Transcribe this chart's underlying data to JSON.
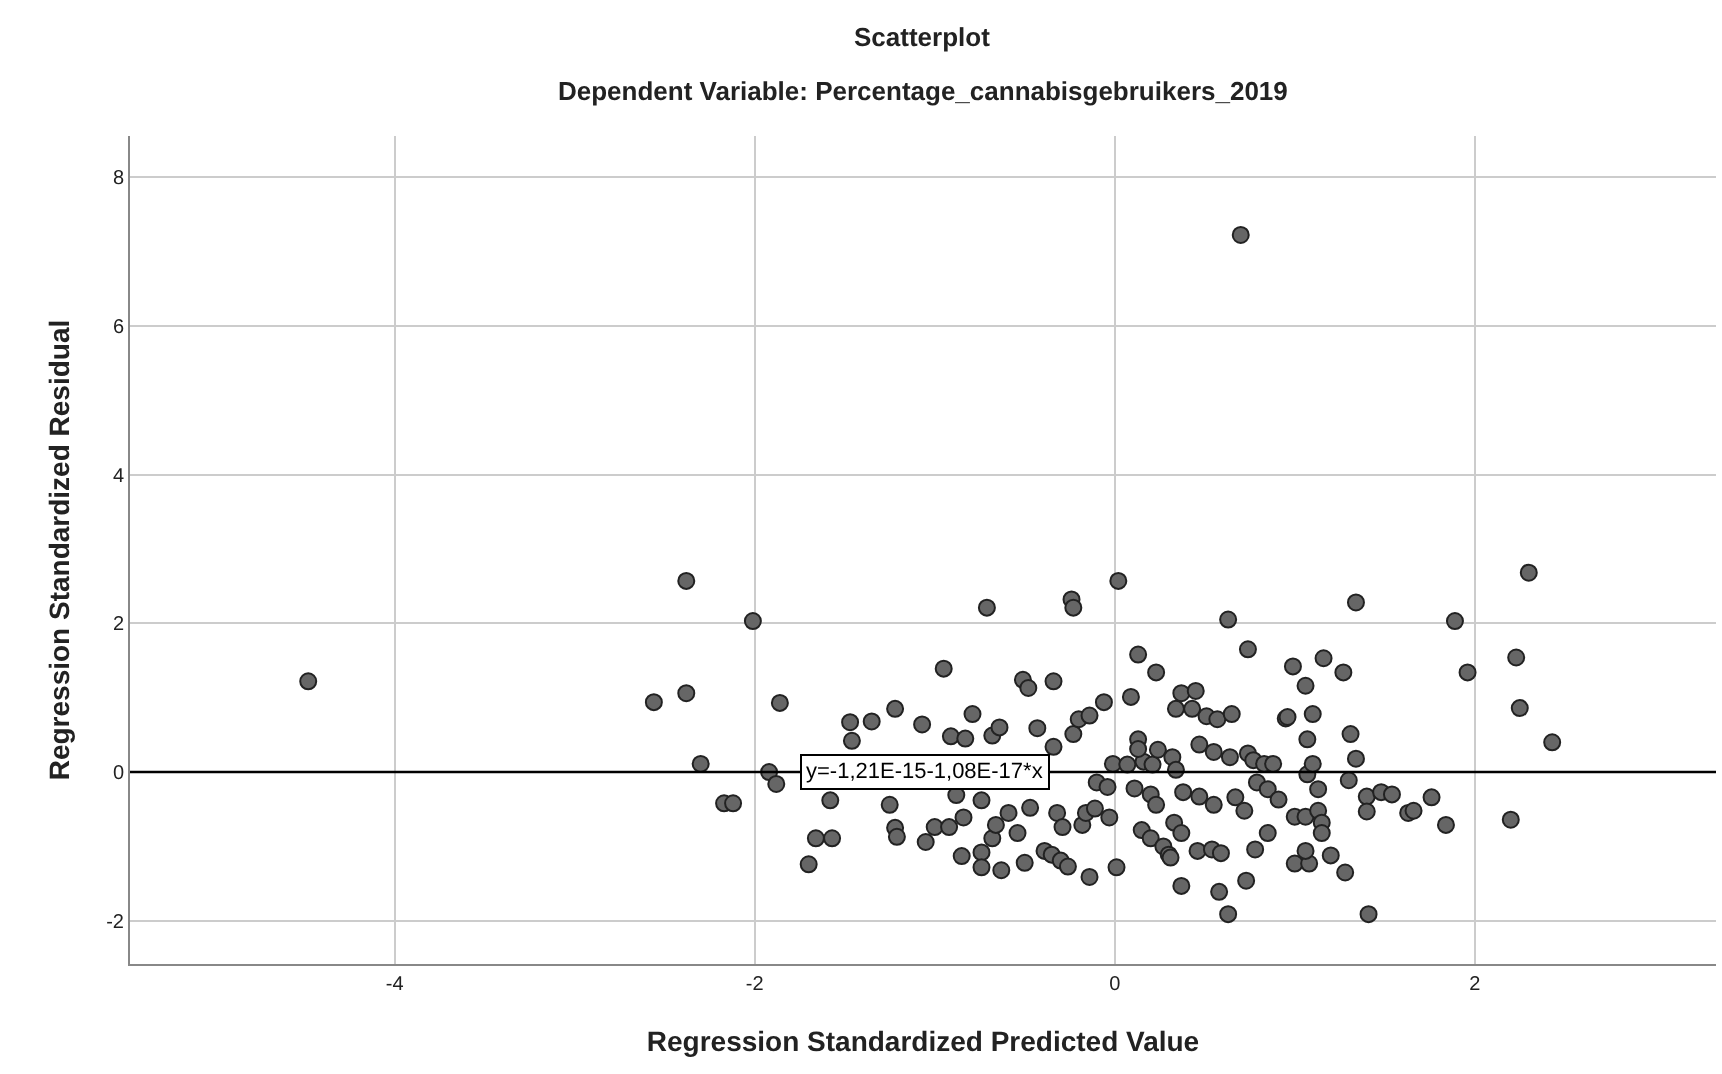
{
  "chart_data": {
    "type": "scatter",
    "title": "Scatterplot",
    "subtitle": "Dependent Variable: Percentage_cannabisgebruikers_2019",
    "xlabel": "Regression Standardized Predicted Value",
    "ylabel": "Regression Standardized Residual",
    "xlim": [
      -5.47,
      3.34
    ],
    "ylim": [
      -2.58,
      8.55
    ],
    "xticks": [
      -4,
      -2,
      0,
      2
    ],
    "yticks": [
      -2,
      0,
      2,
      4,
      6,
      8
    ],
    "grid": true,
    "marker": "circle",
    "annotations": [
      {
        "text": "y=-1,21E-15-1,08E-17*x",
        "x": -1.05,
        "y": 0
      }
    ],
    "series": [
      {
        "color": "#666666",
        "x": [
          0.7,
          -4.48,
          -2.56,
          -2.38,
          -2.38,
          -2.3,
          -2.17,
          -2.12,
          -2.01,
          -1.92,
          -1.86,
          -1.88,
          -1.7,
          -1.66,
          -1.57,
          -1.47,
          -1.46,
          -1.35,
          -1.22,
          -1.58,
          -1.25,
          -1.22,
          -1.21,
          -1.05,
          -1.0,
          -0.92,
          -1.07,
          -0.95,
          -0.91,
          -0.83,
          -0.79,
          -0.88,
          -0.74,
          -0.85,
          -0.84,
          -0.74,
          -0.74,
          -0.71,
          -0.68,
          -0.66,
          -0.68,
          -0.64,
          -0.63,
          -0.59,
          -0.51,
          -0.48,
          -0.5,
          -0.54,
          -0.47,
          -0.43,
          -0.39,
          -0.35,
          -0.3,
          -0.26,
          -0.34,
          -0.34,
          -0.32,
          -0.29,
          -0.24,
          -0.23,
          -0.23,
          -0.2,
          -0.14,
          -0.18,
          -0.14,
          -0.16,
          -0.11,
          -0.06,
          0.01,
          0.02,
          -0.03,
          -0.1,
          -0.04,
          -0.01,
          0.07,
          0.16,
          0.21,
          0.09,
          0.13,
          0.23,
          0.13,
          0.13,
          0.11,
          0.2,
          0.23,
          0.15,
          0.2,
          0.24,
          0.32,
          0.27,
          0.3,
          0.31,
          0.33,
          0.37,
          0.37,
          0.34,
          0.37,
          0.45,
          0.43,
          0.51,
          0.57,
          0.65,
          0.47,
          0.55,
          0.64,
          0.74,
          0.77,
          0.34,
          0.38,
          0.47,
          0.55,
          0.46,
          0.54,
          0.59,
          0.63,
          0.74,
          0.58,
          0.63,
          0.73,
          0.67,
          0.72,
          0.78,
          0.85,
          0.79,
          0.85,
          0.91,
          0.83,
          0.88,
          0.95,
          0.96,
          0.99,
          1.06,
          1.1,
          1.07,
          1.07,
          1.1,
          1.13,
          1.0,
          1.06,
          1.13,
          1.15,
          1.15,
          1.0,
          1.08,
          1.06,
          1.2,
          1.28,
          1.16,
          1.27,
          1.34,
          1.31,
          1.34,
          1.3,
          1.4,
          1.4,
          1.48,
          1.54,
          1.41,
          1.63,
          1.66,
          1.76,
          1.84,
          1.89,
          1.96,
          2.2,
          2.23,
          2.25,
          2.3,
          2.43
        ],
        "values": [
          7.22,
          1.22,
          0.94,
          2.57,
          1.06,
          0.11,
          -0.42,
          -0.42,
          2.03,
          0.0,
          0.93,
          -0.16,
          -1.24,
          -0.89,
          -0.89,
          0.67,
          0.42,
          0.68,
          0.85,
          -0.38,
          -0.44,
          -0.75,
          -0.87,
          -0.94,
          -0.74,
          -0.74,
          0.64,
          1.39,
          0.48,
          0.45,
          0.78,
          -0.31,
          -0.38,
          -1.13,
          -0.61,
          -1.08,
          -1.28,
          2.21,
          -0.89,
          -0.71,
          0.49,
          0.6,
          -1.32,
          -0.55,
          1.24,
          1.13,
          -1.22,
          -0.82,
          -0.48,
          0.59,
          -1.06,
          -1.11,
          -1.19,
          -1.27,
          1.22,
          0.34,
          -0.55,
          -0.74,
          2.32,
          2.21,
          0.51,
          0.71,
          0.76,
          -0.71,
          -1.41,
          -0.55,
          -0.49,
          0.94,
          -1.28,
          2.57,
          -0.61,
          -0.14,
          -0.2,
          0.11,
          0.1,
          0.14,
          0.1,
          1.01,
          1.58,
          1.34,
          0.44,
          0.31,
          -0.22,
          -0.3,
          -0.44,
          -0.78,
          -0.89,
          0.3,
          0.2,
          -1.0,
          -1.11,
          -1.15,
          -0.68,
          -0.82,
          -1.53,
          0.85,
          1.06,
          1.09,
          0.85,
          0.75,
          0.71,
          0.78,
          0.37,
          0.27,
          0.2,
          0.25,
          0.16,
          0.03,
          -0.27,
          -0.33,
          -0.44,
          -1.06,
          -1.04,
          -1.09,
          2.05,
          1.65,
          -1.61,
          -1.91,
          -1.46,
          -0.34,
          -0.52,
          -1.04,
          -0.82,
          -0.14,
          -0.23,
          -0.37,
          0.11,
          0.11,
          0.72,
          0.74,
          1.42,
          1.16,
          0.78,
          0.44,
          -0.03,
          0.11,
          -0.23,
          -0.6,
          -0.6,
          -0.52,
          -0.68,
          -0.82,
          -1.23,
          -1.23,
          -1.06,
          -1.12,
          -1.35,
          1.53,
          1.34,
          2.28,
          0.51,
          0.18,
          -0.11,
          -0.33,
          -0.53,
          -0.27,
          -0.3,
          -1.91,
          -0.55,
          -0.52,
          -0.34,
          -0.71,
          2.03,
          1.34,
          -0.64,
          1.54,
          0.86,
          2.68,
          0.4
        ]
      },
      {
        "type": "line",
        "color": "#000000",
        "marker": "none",
        "x": [
          -5.47,
          3.34
        ],
        "values": [
          0,
          0
        ]
      }
    ]
  }
}
